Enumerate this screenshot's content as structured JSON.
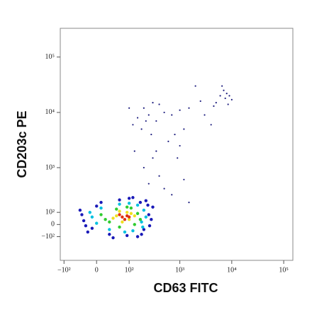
{
  "chart_data": {
    "type": "scatter",
    "x_label": "CD63 FITC",
    "y_label": "CD203c PE",
    "xscale": "biexponential",
    "yscale": "biexponential",
    "xlim": [
      -120,
      150000
    ],
    "ylim": [
      -400,
      330000
    ],
    "xticks": [
      {
        "value": -100,
        "label": "−10²"
      },
      0,
      {
        "value": 100,
        "label": "10²"
      },
      {
        "value": 1000,
        "label": "10³"
      },
      {
        "value": 10000,
        "label": "10⁴"
      },
      {
        "value": 100000,
        "label": "10⁵"
      }
    ],
    "yticks": [
      {
        "value": -100,
        "label": "−10²"
      },
      0,
      {
        "value": 100,
        "label": "10²"
      },
      {
        "value": 1000,
        "label": "10³"
      },
      {
        "value": 10000,
        "label": "10⁴"
      },
      {
        "value": 100000,
        "label": "10⁵"
      }
    ],
    "series": [
      {
        "color": "#1a1ab8",
        "x": [
          -40,
          -20,
          10,
          250,
          180,
          -30,
          300,
          120,
          40,
          220,
          -10,
          200,
          60,
          150,
          280,
          -35,
          90,
          240,
          0,
          30,
          260,
          100,
          -25,
          170
        ],
        "y": [
          120,
          -60,
          200,
          80,
          -80,
          30,
          150,
          260,
          -110,
          220,
          -30,
          -40,
          230,
          -100,
          40,
          80,
          -90,
          170,
          160,
          -80,
          -10,
          250,
          -10,
          200
        ]
      },
      {
        "color": "#00c0e0",
        "x": [
          -10,
          200,
          30,
          150,
          0,
          180,
          60,
          120,
          -15,
          220,
          80,
          10,
          190,
          100
        ],
        "y": [
          60,
          120,
          -40,
          170,
          10,
          20,
          180,
          -50,
          100,
          60,
          -60,
          140,
          -20,
          190
        ]
      },
      {
        "color": "#30cc30",
        "x": [
          20,
          150,
          60,
          110,
          10,
          170,
          50,
          130,
          30,
          90
        ],
        "y": [
          40,
          90,
          -20,
          140,
          80,
          40,
          130,
          0,
          20,
          150
        ]
      },
      {
        "color": "#f0e020",
        "x": [
          50,
          110,
          70,
          100,
          60,
          130,
          40,
          90
        ],
        "y": [
          70,
          90,
          20,
          40,
          110,
          70,
          50,
          100
        ]
      },
      {
        "color": "#e03010",
        "x": [
          70,
          90,
          80,
          60,
          100
        ],
        "y": [
          60,
          70,
          40,
          80,
          60
        ]
      },
      {
        "color": "#202080",
        "x": [
          150,
          200,
          250,
          300,
          400,
          120,
          180,
          350,
          500,
          700,
          1000,
          1500,
          2500,
          3000,
          4000,
          5000,
          6000,
          7000,
          7500,
          8000,
          9000,
          6500,
          10000,
          4500,
          8500,
          2000,
          100,
          220,
          280,
          130,
          200,
          300,
          400,
          600,
          800,
          1000,
          1200,
          900,
          500,
          700,
          1500,
          1200,
          250,
          350
        ],
        "y": [
          8000,
          12000,
          9000,
          15000,
          14000,
          6000,
          5000,
          7000,
          10000,
          9000,
          11000,
          12000,
          16000,
          9000,
          6000,
          15000,
          20000,
          25000,
          18000,
          22000,
          20000,
          30000,
          17000,
          13000,
          14000,
          30000,
          12000,
          7000,
          4000,
          2000,
          1000,
          1500,
          700,
          3000,
          4000,
          2500,
          5000,
          1500,
          400,
          300,
          200,
          600,
          500,
          2000
        ]
      }
    ]
  }
}
